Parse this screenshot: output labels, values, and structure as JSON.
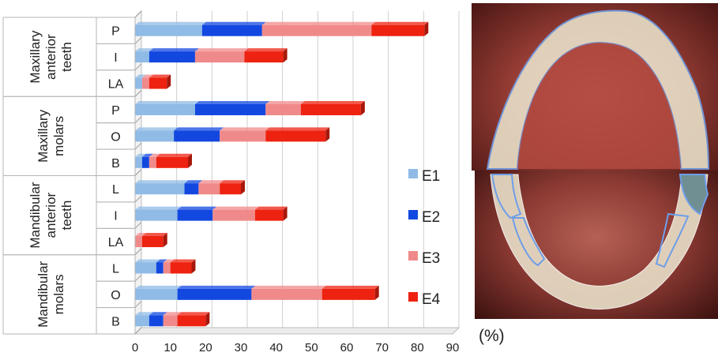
{
  "chart_data": {
    "type": "bar",
    "orientation": "horizontal",
    "stacked": true,
    "groups": [
      {
        "label": "Maxillary anterior teeth",
        "label_lines": [
          "Maxillary",
          "anterior",
          "teeth"
        ],
        "rows": [
          "P",
          "I",
          "LA"
        ]
      },
      {
        "label": "Maxillary molars",
        "label_lines": [
          "Maxillary",
          "molars"
        ],
        "rows": [
          "P",
          "O",
          "B"
        ]
      },
      {
        "label": "Mandibular anterior teeth",
        "label_lines": [
          "Mandibular",
          "anterior",
          "teeth"
        ],
        "rows": [
          "L",
          "I",
          "LA"
        ]
      },
      {
        "label": "Mandibular molars",
        "label_lines": [
          "Mandibular",
          "molars"
        ],
        "rows": [
          "L",
          "O",
          "B"
        ]
      }
    ],
    "categories": [
      "P",
      "I",
      "LA",
      "P",
      "O",
      "B",
      "L",
      "I",
      "LA",
      "L",
      "O",
      "B"
    ],
    "series": [
      {
        "name": "E1",
        "color": "#8fbbe6",
        "values": [
          19,
          4,
          2,
          17,
          11,
          2,
          14,
          12,
          0,
          6,
          12,
          4
        ]
      },
      {
        "name": "E2",
        "color": "#1248e0",
        "values": [
          17,
          13,
          0,
          20,
          13,
          2,
          4,
          10,
          0,
          2,
          21,
          4
        ]
      },
      {
        "name": "E3",
        "color": "#f08a8a",
        "values": [
          31,
          14,
          2,
          10,
          13,
          2,
          6,
          12,
          2,
          2,
          20,
          4
        ]
      },
      {
        "name": "E4",
        "color": "#ee2210",
        "values": [
          15,
          11,
          5,
          17,
          17,
          9,
          6,
          8,
          6,
          6,
          15,
          8
        ]
      }
    ],
    "xlim": [
      0,
      90
    ],
    "xticks": [
      0,
      10,
      20,
      30,
      40,
      50,
      60,
      70,
      80,
      90
    ],
    "unit_label": "(%)",
    "legend_position": "right",
    "grid": true
  },
  "photos": {
    "upper": "maxillary-arch-photo",
    "lower": "mandibular-arch-photo",
    "outline_color": "#6e9ee8"
  }
}
